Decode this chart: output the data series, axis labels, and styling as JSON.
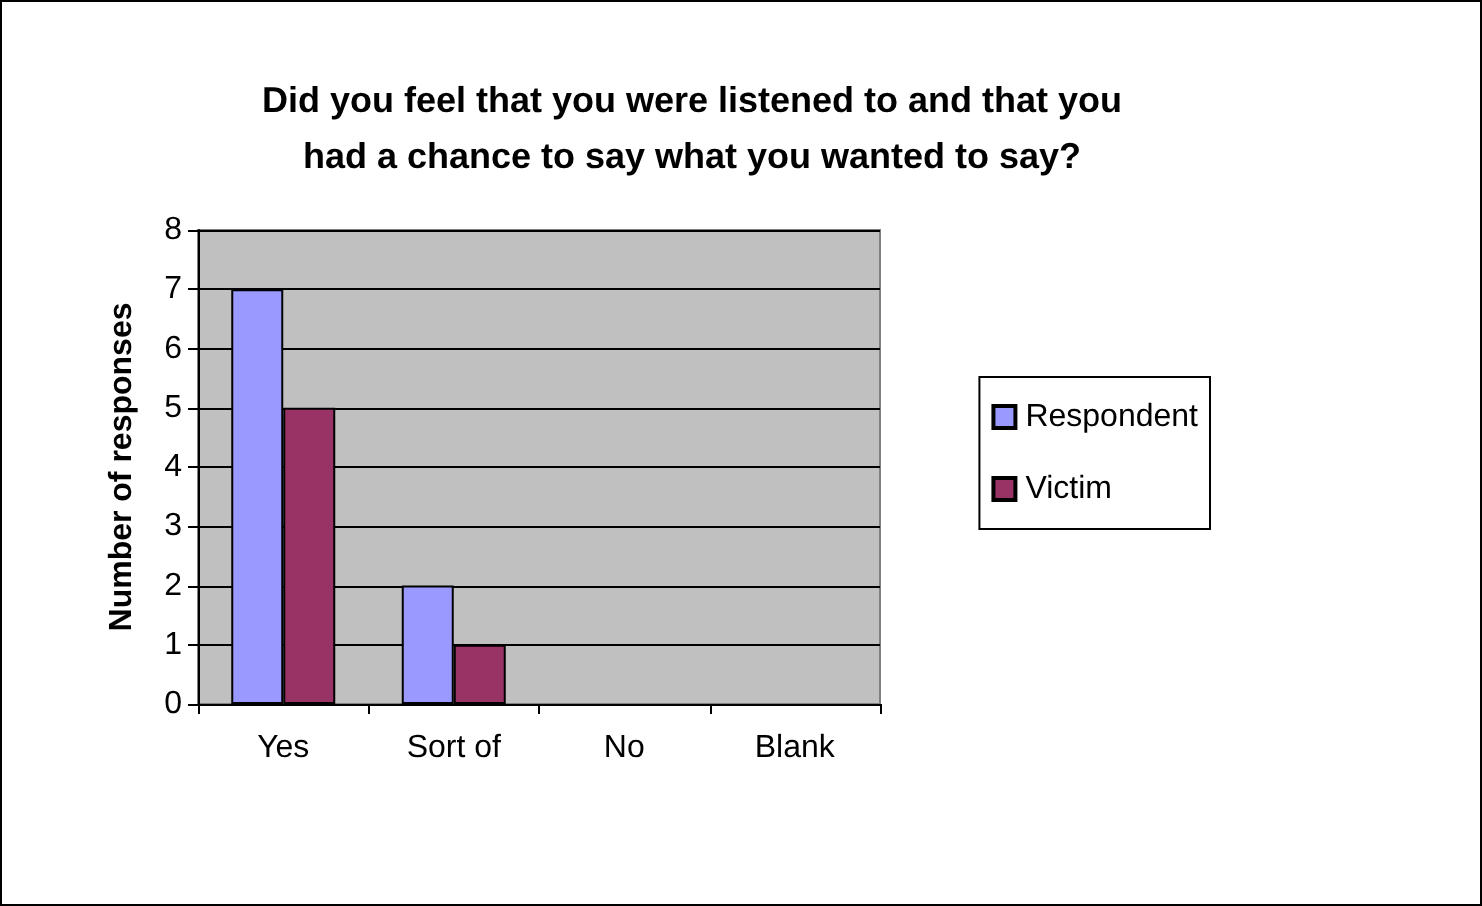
{
  "chart_data": {
    "type": "bar",
    "title": "Did you feel that you were listened to and that you\nhad a chance to say what you wanted to say?",
    "ylabel": "Number of responses",
    "categories": [
      "Yes",
      "Sort of",
      "No",
      "Blank"
    ],
    "series": [
      {
        "name": "Respondent",
        "color": "#9999ff",
        "values": [
          7,
          2,
          0,
          0
        ]
      },
      {
        "name": "Victim",
        "color": "#993366",
        "values": [
          5,
          1,
          0,
          0
        ]
      }
    ],
    "ylim": [
      0,
      8
    ],
    "yticks": [
      0,
      1,
      2,
      3,
      4,
      5,
      6,
      7,
      8
    ],
    "grid": "y",
    "legend": "right"
  }
}
